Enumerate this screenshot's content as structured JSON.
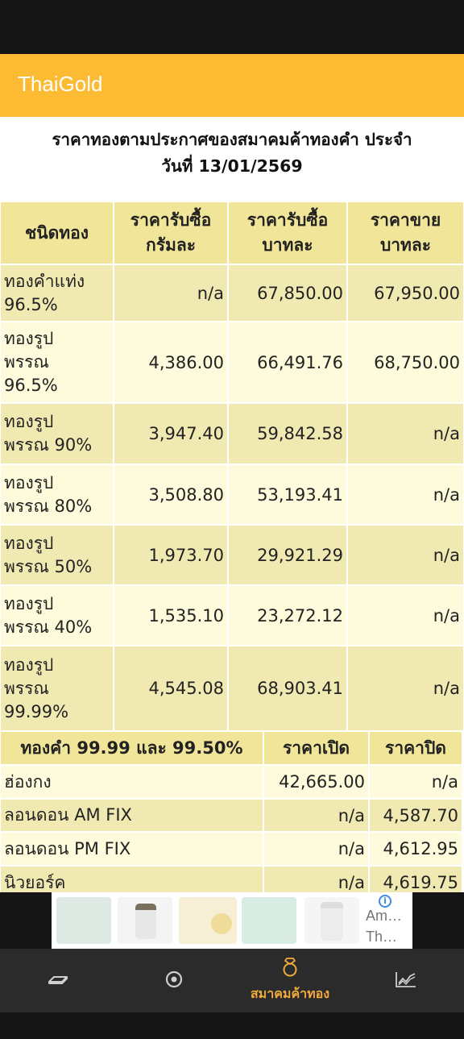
{
  "app": {
    "title": "ThaiGold"
  },
  "heading": {
    "line1": "ราคาทองตามประกาศของสมาคมค้าทองคำ ประจำ",
    "line2": "วันที่ 13/01/2569"
  },
  "table1": {
    "headers": [
      "ชนิดทอง",
      "ราคารับซื้อ\nกรัมละ",
      "ราคารับซื้อ\nบาทละ",
      "ราคาขาย\nบาทละ"
    ],
    "rows": [
      {
        "name": "ทองคำแท่ง\n96.5%",
        "buy_gram": "n/a",
        "buy_baht": "67,850.00",
        "sell_baht": "67,950.00"
      },
      {
        "name": "ทองรูป\nพรรณ\n96.5%",
        "buy_gram": "4,386.00",
        "buy_baht": "66,491.76",
        "sell_baht": "68,750.00"
      },
      {
        "name": "ทองรูป\nพรรณ 90%",
        "buy_gram": "3,947.40",
        "buy_baht": "59,842.58",
        "sell_baht": "n/a"
      },
      {
        "name": "ทองรูป\nพรรณ 80%",
        "buy_gram": "3,508.80",
        "buy_baht": "53,193.41",
        "sell_baht": "n/a"
      },
      {
        "name": "ทองรูป\nพรรณ 50%",
        "buy_gram": "1,973.70",
        "buy_baht": "29,921.29",
        "sell_baht": "n/a"
      },
      {
        "name": "ทองรูป\nพรรณ 40%",
        "buy_gram": "1,535.10",
        "buy_baht": "23,272.12",
        "sell_baht": "n/a"
      },
      {
        "name": "ทองรูป\nพรรณ\n99.99%",
        "buy_gram": "4,545.08",
        "buy_baht": "68,903.41",
        "sell_baht": "n/a"
      }
    ]
  },
  "table2": {
    "headers": [
      "ทองคำ 99.99 และ 99.50%",
      "ราคาเปิด",
      "ราคาปิด"
    ],
    "rows": [
      {
        "market": "ฮ่องกง",
        "open": "42,665.00",
        "close": "n/a"
      },
      {
        "market": "ลอนดอน AM FIX",
        "open": "n/a",
        "close": "4,587.70"
      },
      {
        "market": "ลอนดอน PM FIX",
        "open": "n/a",
        "close": "4,612.95"
      },
      {
        "market": "นิวยอร์ค",
        "open": "n/a",
        "close": "4,619.75"
      }
    ]
  },
  "ad": {
    "text_line1": "Am…",
    "text_line2": "Th…",
    "info_icon": "i"
  },
  "nav": {
    "items": [
      {
        "icon": "gold-bar-icon",
        "label": ""
      },
      {
        "icon": "target-icon",
        "label": ""
      },
      {
        "icon": "ring-icon",
        "label": "สมาคมค้าทอง"
      },
      {
        "icon": "chart-line-icon",
        "label": ""
      }
    ],
    "active_color": "#f2a93b"
  },
  "colors": {
    "appbar": "#fcbb33",
    "header_cell": "#f1e599",
    "row_light": "#fdfbdb",
    "row_dark": "#f1e9b2"
  }
}
